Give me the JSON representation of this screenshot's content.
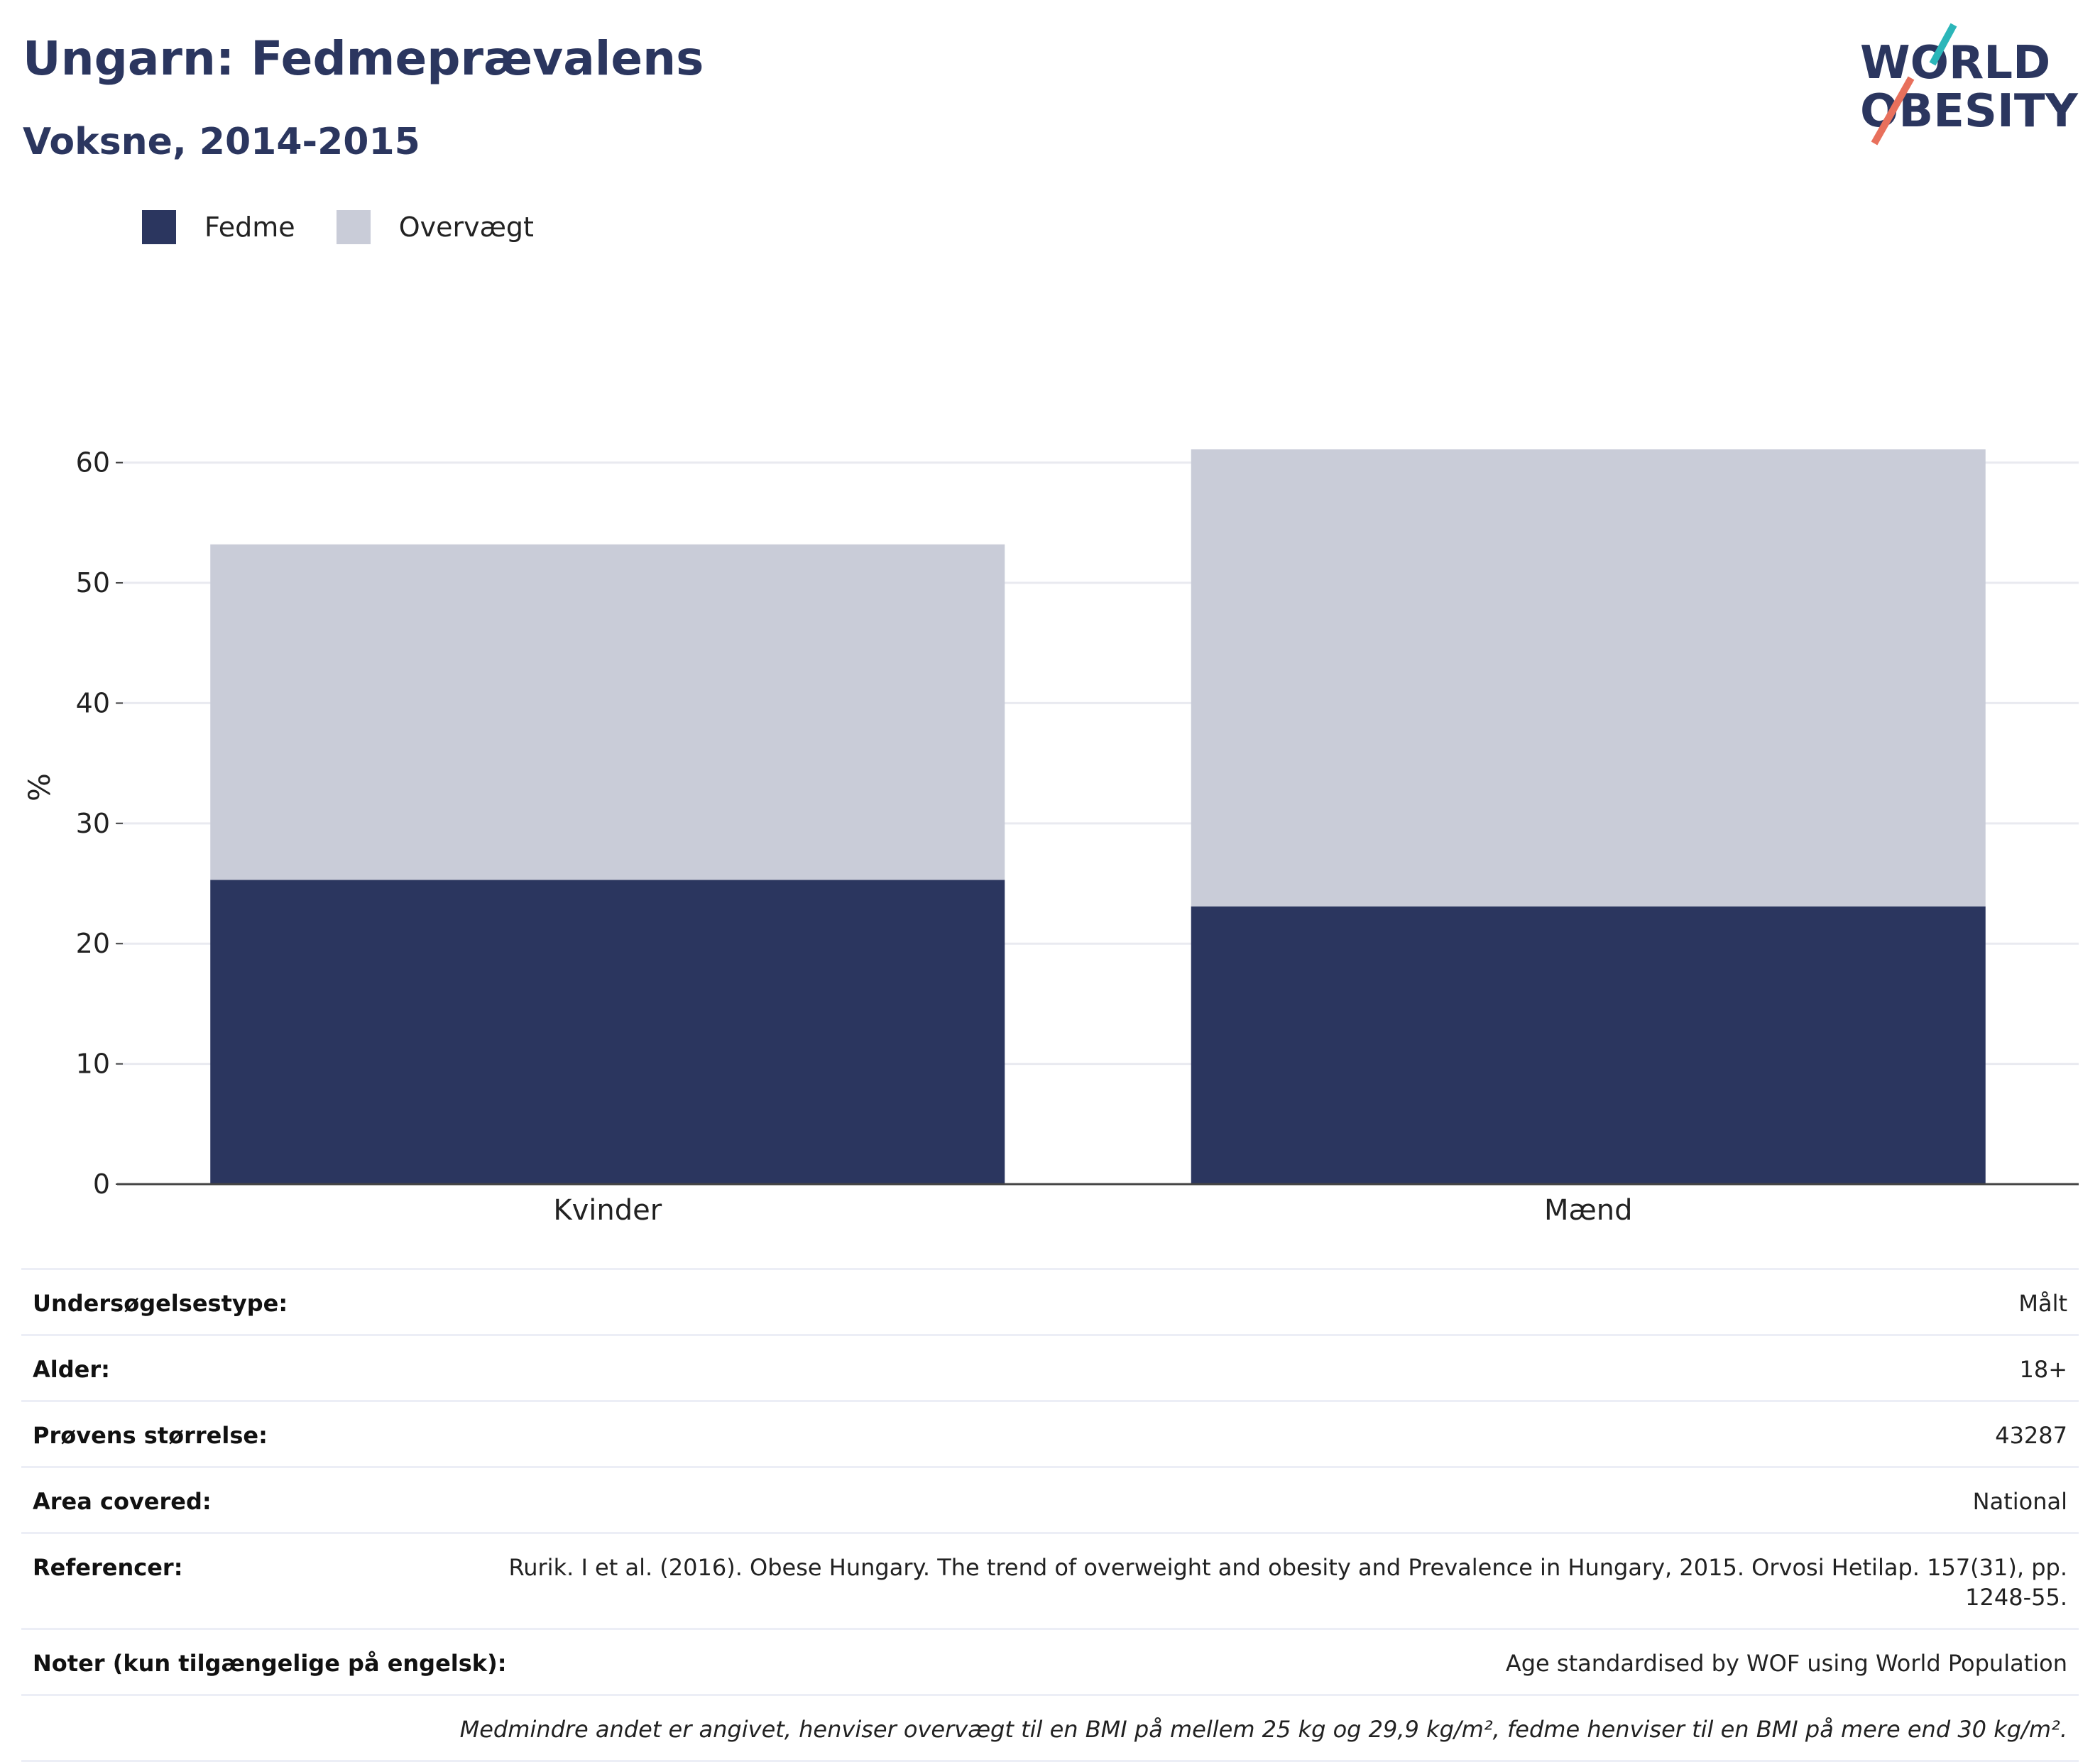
{
  "header": {
    "title": "Ungarn: Fedmeprævalens",
    "subtitle": "Voksne, 2014-2015"
  },
  "logo": {
    "line1": "WORLD",
    "line2": "OBESITY",
    "colors": {
      "text": "#2b365f",
      "teal": "#2bb6b9",
      "coral": "#e8705c"
    }
  },
  "legend": [
    {
      "label": "Fedme",
      "color": "#2b365f"
    },
    {
      "label": "Overvægt",
      "color": "#c9ccd8"
    }
  ],
  "chart_data": {
    "type": "bar",
    "stacked": true,
    "categories": [
      "Kvinder",
      "Mænd"
    ],
    "series": [
      {
        "name": "Fedme",
        "values": [
          25.3,
          23.1
        ],
        "color": "#2b365f"
      },
      {
        "name": "Overvægt",
        "values": [
          27.9,
          38.0
        ],
        "color": "#c9ccd8"
      }
    ],
    "ylabel": "%",
    "ylim": [
      0,
      66
    ],
    "yticks": [
      0,
      10,
      20,
      30,
      40,
      50,
      60
    ],
    "grid": true,
    "legend_position": "top-left"
  },
  "info": {
    "rows": [
      {
        "label": "Undersøgelsestype:",
        "value": "Målt"
      },
      {
        "label": "Alder:",
        "value": "18+"
      },
      {
        "label": "Prøvens størrelse:",
        "value": "43287"
      },
      {
        "label": "Area covered:",
        "value": "National"
      },
      {
        "label": "Referencer:",
        "value": "Rurik. I et al. (2016). Obese Hungary. The trend of overweight and obesity and Prevalence in Hungary, 2015. Orvosi Hetilap. 157(31), pp. 1248-55."
      },
      {
        "label": "Noter (kun tilgængelige på engelsk):",
        "value": "Age standardised by WOF using World Population"
      }
    ],
    "footnote": "Medmindre andet er angivet, henviser overvægt til en BMI på mellem 25 kg og 29,9 kg/m², fedme henviser til en BMI på mere end 30 kg/m²."
  }
}
